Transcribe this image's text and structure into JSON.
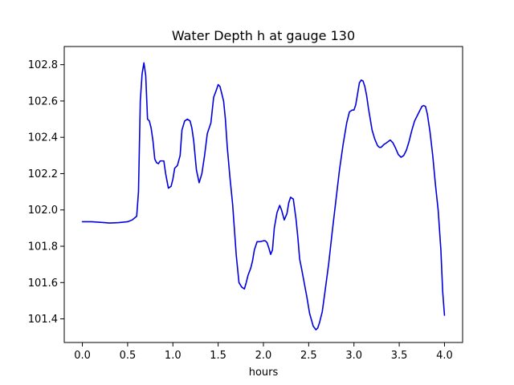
{
  "chart_data": {
    "type": "line",
    "title": "Water Depth h at gauge 130",
    "xlabel": "hours",
    "ylabel": "",
    "xlim": [
      -0.2,
      4.2
    ],
    "ylim": [
      101.27,
      102.9
    ],
    "xticks": [
      0.0,
      0.5,
      1.0,
      1.5,
      2.0,
      2.5,
      3.0,
      3.5,
      4.0
    ],
    "xtick_labels": [
      "0.0",
      "0.5",
      "1.0",
      "1.5",
      "2.0",
      "2.5",
      "3.0",
      "3.5",
      "4.0"
    ],
    "yticks": [
      101.4,
      101.6,
      101.8,
      102.0,
      102.2,
      102.4,
      102.6,
      102.8
    ],
    "ytick_labels": [
      "101.4",
      "101.6",
      "101.8",
      "102.0",
      "102.2",
      "102.4",
      "102.6",
      "102.8"
    ],
    "grid": false,
    "series": [
      {
        "color": "#0000dd",
        "x": [
          0.0,
          0.1,
          0.2,
          0.3,
          0.4,
          0.5,
          0.55,
          0.6,
          0.62,
          0.64,
          0.66,
          0.68,
          0.7,
          0.72,
          0.74,
          0.76,
          0.78,
          0.8,
          0.82,
          0.84,
          0.86,
          0.9,
          0.92,
          0.95,
          0.98,
          1.0,
          1.02,
          1.05,
          1.08,
          1.1,
          1.13,
          1.16,
          1.19,
          1.21,
          1.23,
          1.26,
          1.29,
          1.32,
          1.35,
          1.38,
          1.42,
          1.45,
          1.48,
          1.5,
          1.52,
          1.54,
          1.56,
          1.58,
          1.6,
          1.63,
          1.66,
          1.7,
          1.73,
          1.76,
          1.79,
          1.81,
          1.83,
          1.86,
          1.88,
          1.9,
          1.93,
          1.96,
          2.0,
          2.02,
          2.04,
          2.06,
          2.08,
          2.1,
          2.12,
          2.15,
          2.18,
          2.2,
          2.23,
          2.26,
          2.28,
          2.3,
          2.33,
          2.36,
          2.38,
          2.4,
          2.42,
          2.45,
          2.48,
          2.51,
          2.55,
          2.58,
          2.6,
          2.62,
          2.65,
          2.68,
          2.72,
          2.76,
          2.8,
          2.84,
          2.88,
          2.92,
          2.95,
          2.98,
          3.0,
          3.02,
          3.04,
          3.06,
          3.08,
          3.1,
          3.12,
          3.14,
          3.16,
          3.18,
          3.2,
          3.23,
          3.26,
          3.28,
          3.3,
          3.33,
          3.36,
          3.4,
          3.43,
          3.46,
          3.49,
          3.52,
          3.55,
          3.58,
          3.61,
          3.64,
          3.67,
          3.7,
          3.73,
          3.75,
          3.77,
          3.79,
          3.81,
          3.84,
          3.87,
          3.9,
          3.93,
          3.96,
          3.98,
          4.0
        ],
        "y": [
          101.935,
          101.935,
          101.932,
          101.928,
          101.93,
          101.935,
          101.945,
          101.965,
          102.1,
          102.6,
          102.75,
          102.81,
          102.74,
          102.5,
          102.49,
          102.45,
          102.38,
          102.28,
          102.26,
          102.255,
          102.27,
          102.27,
          102.2,
          102.12,
          102.13,
          102.17,
          102.23,
          102.245,
          102.3,
          102.44,
          102.49,
          102.5,
          102.49,
          102.45,
          102.38,
          102.22,
          102.15,
          102.2,
          102.3,
          102.42,
          102.48,
          102.62,
          102.66,
          102.69,
          102.68,
          102.64,
          102.6,
          102.5,
          102.35,
          102.18,
          102.03,
          101.75,
          101.6,
          101.575,
          101.565,
          101.6,
          101.64,
          101.68,
          101.72,
          101.78,
          101.825,
          101.825,
          101.83,
          101.83,
          101.82,
          101.79,
          101.755,
          101.78,
          101.9,
          101.985,
          102.025,
          102.0,
          101.945,
          101.98,
          102.04,
          102.07,
          102.06,
          101.95,
          101.85,
          101.73,
          101.68,
          101.6,
          101.52,
          101.43,
          101.36,
          101.34,
          101.35,
          101.38,
          101.44,
          101.55,
          101.7,
          101.88,
          102.05,
          102.22,
          102.36,
          102.48,
          102.54,
          102.55,
          102.55,
          102.58,
          102.64,
          102.7,
          102.715,
          102.71,
          102.68,
          102.63,
          102.56,
          102.5,
          102.44,
          102.39,
          102.355,
          102.345,
          102.345,
          102.36,
          102.37,
          102.385,
          102.37,
          102.34,
          102.305,
          102.29,
          102.3,
          102.33,
          102.38,
          102.44,
          102.49,
          102.52,
          102.55,
          102.57,
          102.575,
          102.57,
          102.53,
          102.43,
          102.3,
          102.14,
          102.0,
          101.78,
          101.55,
          101.42
        ]
      }
    ]
  }
}
